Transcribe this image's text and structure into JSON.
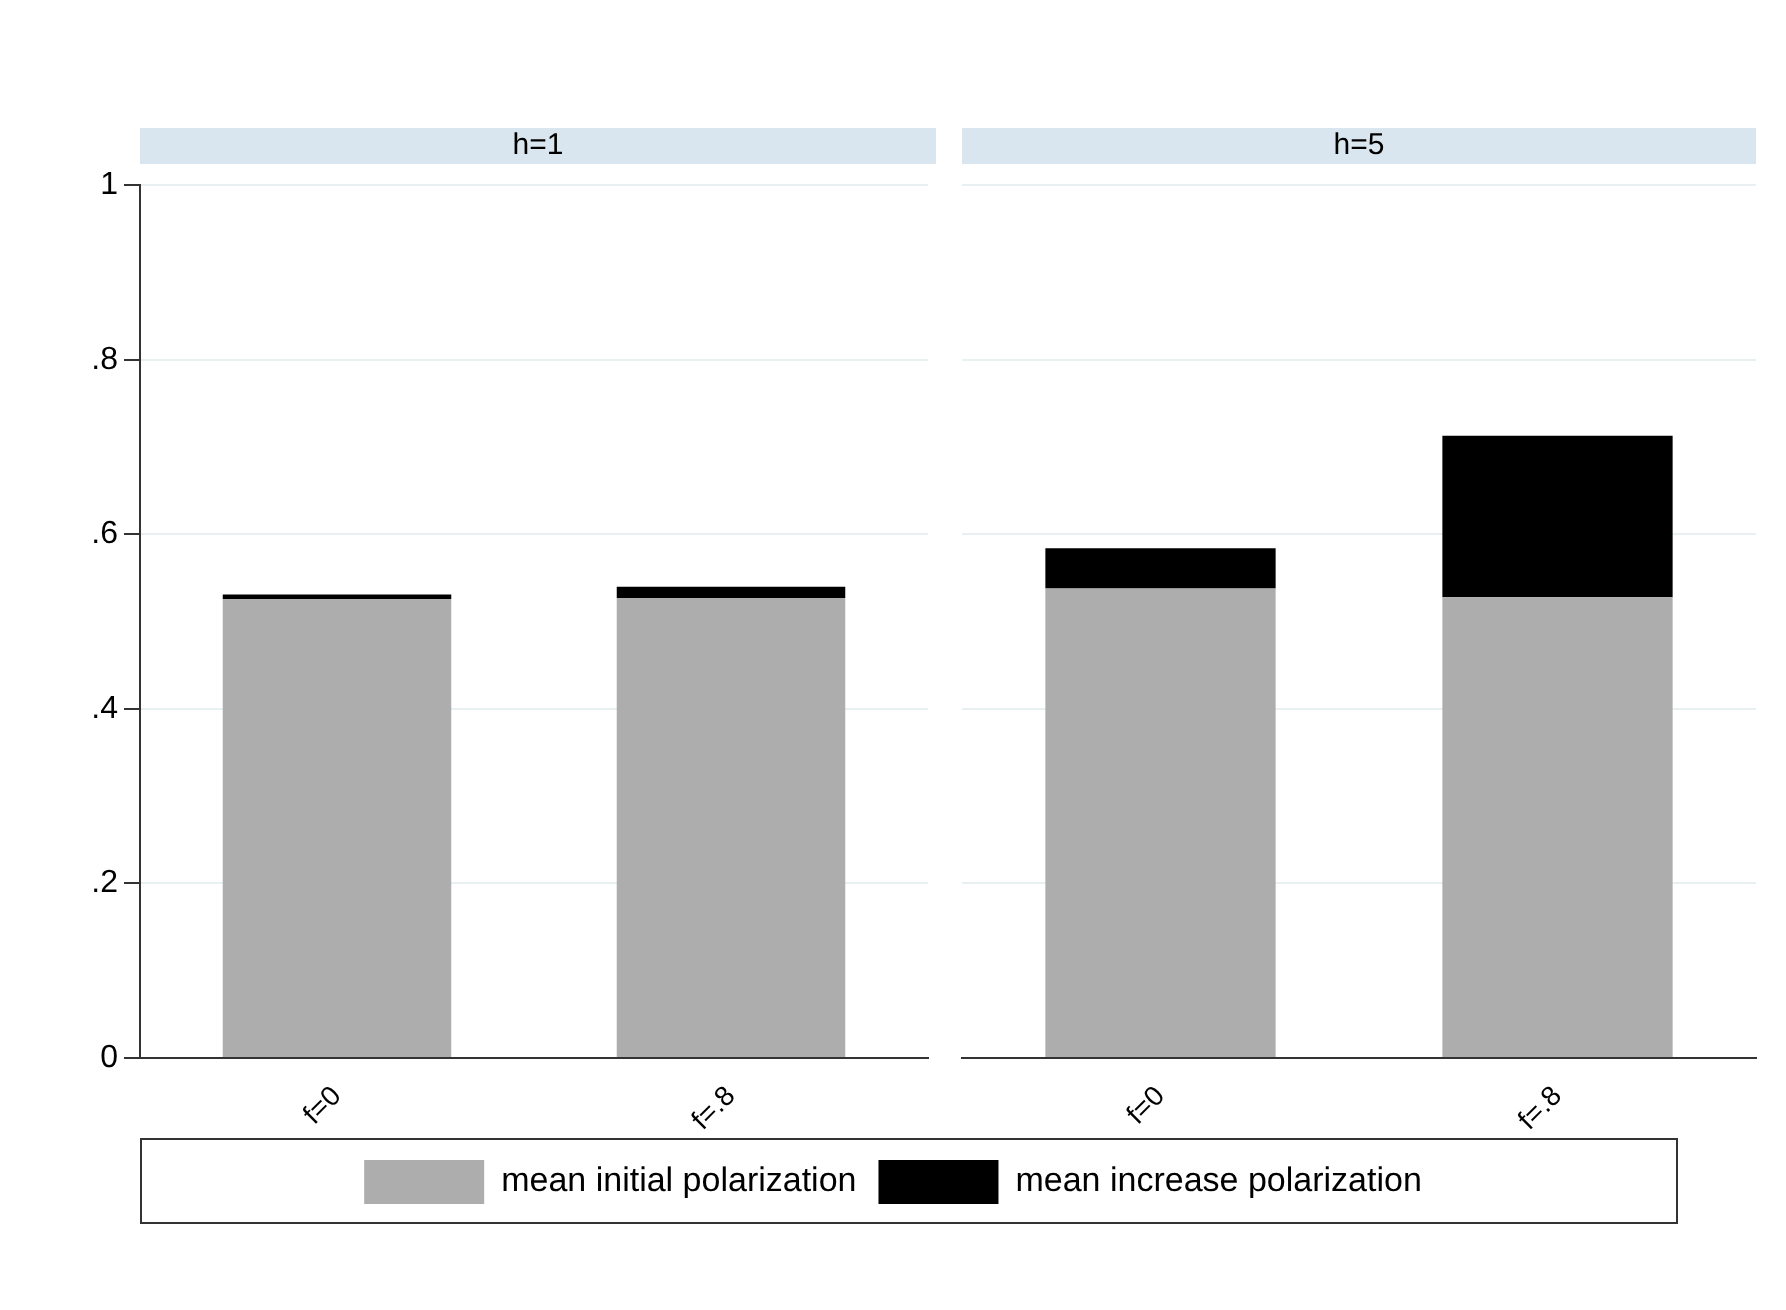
{
  "chart_data": [
    {
      "type": "bar",
      "title": "h=1",
      "categories": [
        "f=0",
        "f=.8"
      ],
      "stacked": true,
      "series": [
        {
          "name": "mean initial polarization",
          "color": "#adadad",
          "values": [
            0.526,
            0.527
          ]
        },
        {
          "name": "mean increase polarization",
          "color": "#000000",
          "values": [
            0.005,
            0.013
          ]
        }
      ],
      "ylim": [
        0,
        1
      ],
      "yticks": [
        0,
        {
          "value": 0.2,
          "label": ".2"
        },
        {
          "value": 0.4,
          "label": ".4"
        },
        {
          "value": 0.6,
          "label": ".6"
        },
        {
          "value": 0.8,
          "label": ".8"
        },
        1
      ],
      "grid": "y",
      "legend": "bottom"
    },
    {
      "type": "bar",
      "title": "h=5",
      "categories": [
        "f=0",
        "f=.8"
      ],
      "stacked": true,
      "series": [
        {
          "color": "#adadad",
          "values": [
            0.538,
            0.528
          ]
        },
        {
          "color": "#000000",
          "values": [
            0.046,
            0.185
          ]
        }
      ],
      "ylim": [
        0,
        1
      ],
      "yticks": [
        0,
        0.2,
        0.4,
        0.6,
        0.8,
        1
      ],
      "grid": "y",
      "tick_labels": "x"
    }
  ]
}
